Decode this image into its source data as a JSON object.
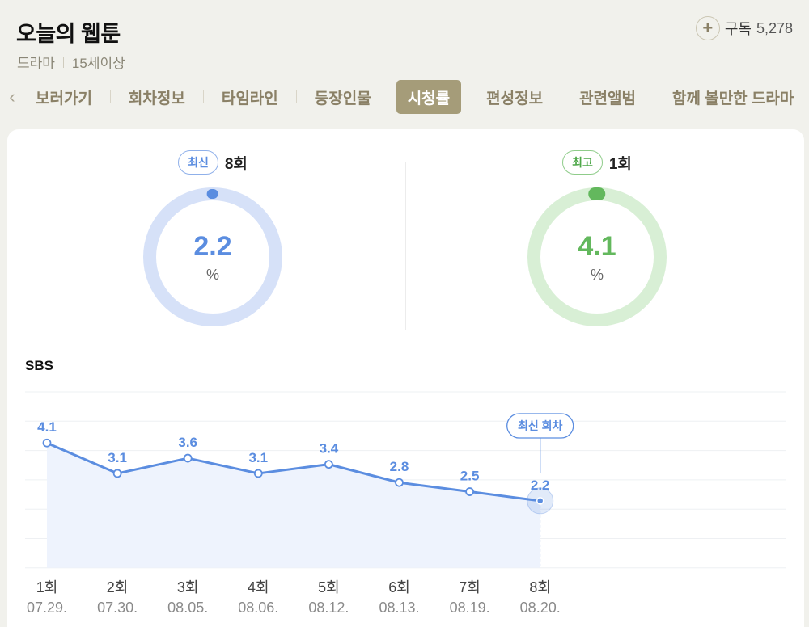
{
  "header": {
    "title": "오늘의 웹툰",
    "genre": "드라마",
    "rating": "15세이상",
    "subscribe": {
      "icon": "plus-icon",
      "label": "구독",
      "count": "5,278"
    }
  },
  "tabs": {
    "prev_icon": "chevron-left-icon",
    "items": [
      {
        "label": "보러가기",
        "active": false
      },
      {
        "label": "회차정보",
        "active": false
      },
      {
        "label": "타임라인",
        "active": false
      },
      {
        "label": "등장인물",
        "active": false
      },
      {
        "label": "시청률",
        "active": true
      },
      {
        "label": "편성정보",
        "active": false
      },
      {
        "label": "관련앨범",
        "active": false
      },
      {
        "label": "함께 볼만한 드라마",
        "active": false
      }
    ]
  },
  "summary": {
    "latest": {
      "badge": "최신",
      "episode": "8회",
      "value": "2.2",
      "unit": "%",
      "color": "#5b8de0",
      "track": "#d6e1f8"
    },
    "best": {
      "badge": "최고",
      "episode": "1회",
      "value": "4.1",
      "unit": "%",
      "color": "#63b85d",
      "track": "#d8efd5"
    }
  },
  "chart": {
    "broadcaster": "SBS",
    "latest_marker_label": "최신 회차",
    "line_color": "#5b8de0",
    "fill_color": "#eef3fd"
  },
  "chart_data": {
    "type": "line",
    "title": "SBS",
    "categories": [
      "1회",
      "2회",
      "3회",
      "4회",
      "5회",
      "6회",
      "7회",
      "8회"
    ],
    "dates": [
      "07.29.",
      "07.30.",
      "08.05.",
      "08.06.",
      "08.12.",
      "08.13.",
      "08.19.",
      "08.20."
    ],
    "series": [
      {
        "name": "시청률(%)",
        "values": [
          4.1,
          3.1,
          3.6,
          3.1,
          3.4,
          2.8,
          2.5,
          2.2
        ]
      }
    ],
    "annotations": [
      {
        "index": 7,
        "text": "최신 회차"
      }
    ],
    "grid": true,
    "legend": "none",
    "ylim": [
      0,
      7
    ],
    "xlabel": "",
    "ylabel": ""
  }
}
